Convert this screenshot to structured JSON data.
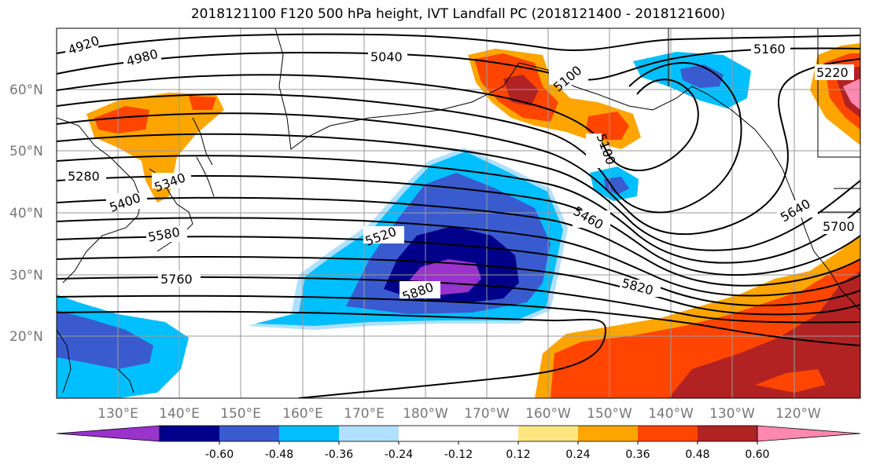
{
  "title": "2018121100 F120 500 hPa height, IVT Landfall PC (2018121400 - 2018121600)",
  "map": {
    "projection": "Mercator",
    "region": "North Pacific",
    "lat_labels": [
      "60°N",
      "50°N",
      "40°N",
      "30°N",
      "20°N"
    ],
    "lon_labels": [
      "130°E",
      "140°E",
      "150°E",
      "160°E",
      "170°E",
      "180°W",
      "170°W",
      "160°W",
      "150°W",
      "140°W",
      "130°W",
      "120°W"
    ],
    "contour_labels": [
      "4920",
      "4980",
      "5040",
      "5100",
      "5160",
      "5220",
      "5100",
      "5280",
      "5340",
      "5400",
      "5460",
      "5520",
      "5580",
      "5640",
      "5700",
      "5760",
      "5820",
      "5880"
    ],
    "fill_field": "IVT Landfall PC",
    "contour_field": "500 hPa height"
  },
  "colorbar": {
    "colors": [
      "#9933cc",
      "#00008b",
      "#3a5bd0",
      "#00bfff",
      "#b0e0ff",
      "#ffffff",
      "#ffffff",
      "#ffe680",
      "#ffa500",
      "#ff4500",
      "#b22222",
      "#ff88b0"
    ],
    "ticks": [
      "-0.60",
      "-0.48",
      "-0.36",
      "-0.24",
      "-0.12",
      "0.12",
      "0.24",
      "0.36",
      "0.48",
      "0.60"
    ]
  },
  "colors": {
    "gridline": "#9a9a9a",
    "contour": "#000000",
    "label": "#777777"
  }
}
